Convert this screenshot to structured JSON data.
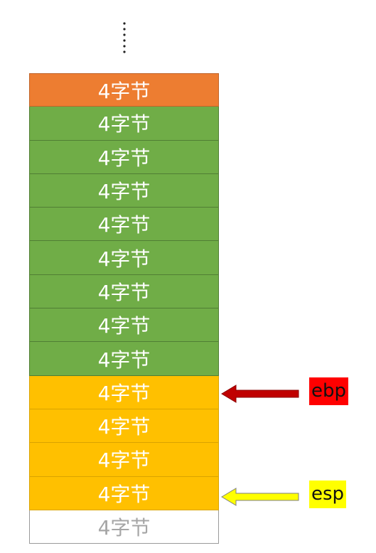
{
  "stack": {
    "cells": [
      {
        "label": "4字节",
        "color": "#ed7d31"
      },
      {
        "label": "4字节",
        "color": "#70ad47"
      },
      {
        "label": "4字节",
        "color": "#70ad47"
      },
      {
        "label": "4字节",
        "color": "#70ad47"
      },
      {
        "label": "4字节",
        "color": "#70ad47"
      },
      {
        "label": "4字节",
        "color": "#70ad47"
      },
      {
        "label": "4字节",
        "color": "#70ad47"
      },
      {
        "label": "4字节",
        "color": "#70ad47"
      },
      {
        "label": "4字节",
        "color": "#70ad47"
      },
      {
        "label": "4字节",
        "color": "#ffc000"
      },
      {
        "label": "4字节",
        "color": "#ffc000"
      },
      {
        "label": "4字节",
        "color": "#ffc000"
      },
      {
        "label": "4字节",
        "color": "#ffc000"
      },
      {
        "label": "4字节",
        "color": "#ffffff"
      }
    ]
  },
  "pointers": {
    "ebp": {
      "label": "ebp",
      "color": "#ff0000",
      "arrow_color": "#c00000"
    },
    "esp": {
      "label": "esp",
      "color": "#ffff00",
      "arrow_color": "#ffff00"
    }
  }
}
